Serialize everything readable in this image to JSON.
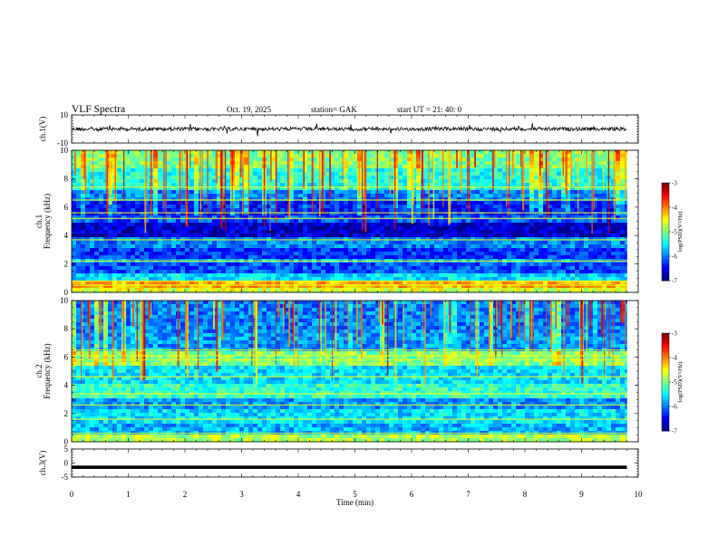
{
  "header": {
    "title": "VLF  Spectra",
    "date": "Oct. 19, 2025",
    "station": "station= GAK",
    "start": "start  UT  =   21: 40: 0"
  },
  "chart_data": [
    {
      "type": "line",
      "name": "ch1-waveform",
      "ylabel": "ch.1(V)",
      "ylim": [
        -10,
        10
      ],
      "yticks": [
        "10",
        "-10"
      ],
      "xlim": [
        0,
        10
      ],
      "baseline": 0,
      "x_end": 9.8
    },
    {
      "type": "heatmap",
      "name": "ch1-spectrogram",
      "channel_label": "ch.1",
      "ylabel": "Frequency  (kHz)",
      "ylim": [
        0,
        10
      ],
      "yticks": [
        "0",
        "2",
        "4",
        "6",
        "8",
        "10"
      ],
      "xlim": [
        0,
        10
      ],
      "x_end": 9.8,
      "colorbar": {
        "label": "log(PSD)(V²/Hz)",
        "range": [
          -7,
          -3
        ],
        "ticks": [
          "-3",
          "-4",
          "-5",
          "-6",
          "-7"
        ]
      },
      "bands": [
        {
          "f": [
            0.0,
            0.3
          ],
          "v": -4.6
        },
        {
          "f": [
            0.3,
            0.9
          ],
          "v": -4.2
        },
        {
          "f": [
            0.9,
            1.3
          ],
          "v": -5.6
        },
        {
          "f": [
            1.3,
            2.0
          ],
          "v": -6.2
        },
        {
          "f": [
            2.0,
            2.4
          ],
          "v": -5.8
        },
        {
          "f": [
            2.4,
            3.2
          ],
          "v": -6.3
        },
        {
          "f": [
            3.2,
            3.9
          ],
          "v": -6.0
        },
        {
          "f": [
            3.9,
            5.0
          ],
          "v": -6.7
        },
        {
          "f": [
            5.0,
            5.4
          ],
          "v": -6.2
        },
        {
          "f": [
            5.4,
            6.4
          ],
          "v": -6.4
        },
        {
          "f": [
            6.4,
            7.2
          ],
          "v": -6.0
        },
        {
          "f": [
            7.2,
            8.6
          ],
          "v": -5.4
        },
        {
          "f": [
            8.6,
            10.0
          ],
          "v": -5.0
        }
      ],
      "tones_khz": [
        0.5,
        0.8,
        2.2,
        3.7,
        5.2,
        5.6,
        6.5,
        7.4
      ]
    },
    {
      "type": "heatmap",
      "name": "ch2-spectrogram",
      "channel_label": "ch.2",
      "ylabel": "Frequency  (kHz)",
      "ylim": [
        0,
        10
      ],
      "yticks": [
        "0",
        "2",
        "4",
        "6",
        "8",
        "10"
      ],
      "xlim": [
        0,
        10
      ],
      "x_end": 9.8,
      "colorbar": {
        "label": "log(PSD)(V²/Hz)",
        "range": [
          -7,
          -3
        ],
        "ticks": [
          "-3",
          "-4",
          "-5",
          "-6",
          "-7"
        ]
      },
      "bands": [
        {
          "f": [
            0.0,
            0.4
          ],
          "v": -4.8
        },
        {
          "f": [
            0.4,
            1.2
          ],
          "v": -5.8
        },
        {
          "f": [
            1.2,
            2.2
          ],
          "v": -5.6
        },
        {
          "f": [
            2.2,
            3.2
          ],
          "v": -5.9
        },
        {
          "f": [
            3.2,
            4.2
          ],
          "v": -5.3
        },
        {
          "f": [
            4.2,
            5.4
          ],
          "v": -5.6
        },
        {
          "f": [
            5.4,
            6.4
          ],
          "v": -5.0
        },
        {
          "f": [
            6.4,
            7.6
          ],
          "v": -5.9
        },
        {
          "f": [
            7.6,
            10.0
          ],
          "v": -6.0
        }
      ],
      "tones_khz": [
        0.6,
        1.6,
        2.6,
        3.4,
        4.6,
        5.8,
        6.1,
        6.5
      ]
    },
    {
      "type": "line",
      "name": "ch3-waveform",
      "ylabel": "ch.3(V)",
      "ylim": [
        -5,
        5
      ],
      "yticks": [
        "5",
        "0",
        "-5"
      ],
      "xlim": [
        0,
        10
      ],
      "baseline": -1.5,
      "x_end": 9.8
    }
  ],
  "xaxis": {
    "label": "Time  (min)",
    "ticks": [
      "0",
      "1",
      "2",
      "3",
      "4",
      "5",
      "6",
      "7",
      "8",
      "9",
      "10"
    ]
  }
}
